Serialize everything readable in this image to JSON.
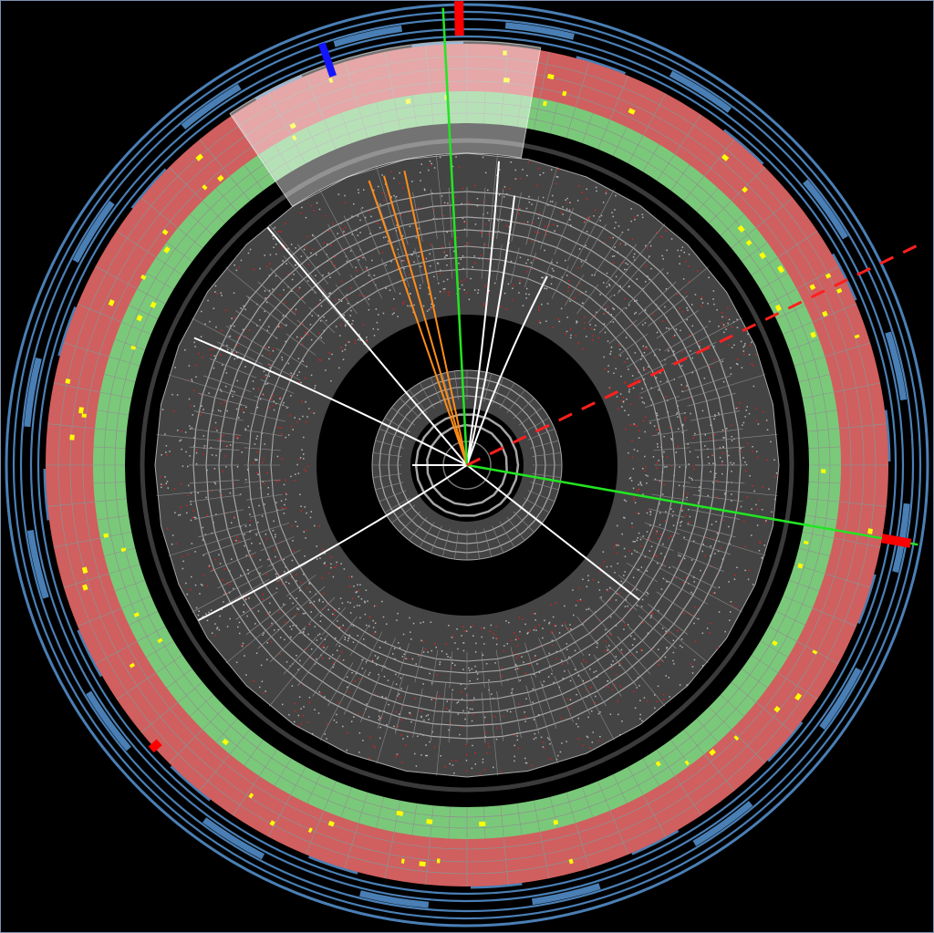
{
  "colors": {
    "background": "#000000",
    "frame": "#7b8fb0",
    "muon_chambers": "#4a7fb5",
    "hadron_calorimeter": "#d05f5f",
    "em_calorimeter": "#7ac97a",
    "calorimeter_grid": "#8f8f8f",
    "energy_deposit": "#ffff00",
    "inner_detector": "#444444",
    "detector_mesh": "#a6a6a6",
    "noise_hits": "#d82020",
    "track": "#ffffff",
    "electron_track": "#ff8c1a",
    "muon_track": "#22e622",
    "missing_energy": "#ff1f1f",
    "jet_cone": "#ffffff",
    "muon_hit_marker_blue": "#1414ff",
    "muon_hit_marker_red": "#ff0000"
  },
  "event": {
    "tracks_white_deg": [
      -84,
      -80,
      -67,
      38,
      150,
      180,
      205,
      230
    ],
    "tracks_orange_deg": [
      -109,
      -106,
      -102
    ],
    "muon_tracks_deg": [
      10,
      267
    ],
    "missing_energy_deg": 154,
    "jet_cone_deg": [
      -124,
      -80
    ]
  }
}
